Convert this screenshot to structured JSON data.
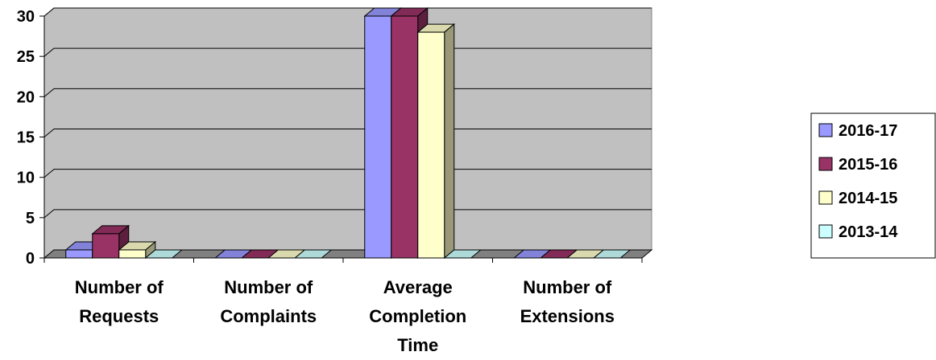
{
  "chart_data": {
    "type": "bar",
    "categories": [
      [
        "Number of",
        "Requests"
      ],
      [
        "Number of",
        "Complaints"
      ],
      [
        "Average",
        "Completion",
        "Time"
      ],
      [
        "Number of",
        "Extensions"
      ]
    ],
    "series": [
      {
        "name": "2016-17",
        "values": [
          1,
          0,
          30,
          0
        ],
        "color": "#9999FF"
      },
      {
        "name": "2015-16",
        "values": [
          3,
          0,
          30,
          0
        ],
        "color": "#993366"
      },
      {
        "name": "2014-15",
        "values": [
          1,
          0,
          28,
          0
        ],
        "color": "#FFFFCC"
      },
      {
        "name": "2013-14",
        "values": [
          0,
          0,
          0,
          0
        ],
        "color": "#CCFFFF"
      }
    ],
    "yticks": [
      "0",
      "5",
      "10",
      "15",
      "20",
      "25",
      "30"
    ],
    "ylim": [
      0,
      30
    ],
    "grid": true,
    "legend_position": "right",
    "plot_background": "#C0C0C0"
  }
}
